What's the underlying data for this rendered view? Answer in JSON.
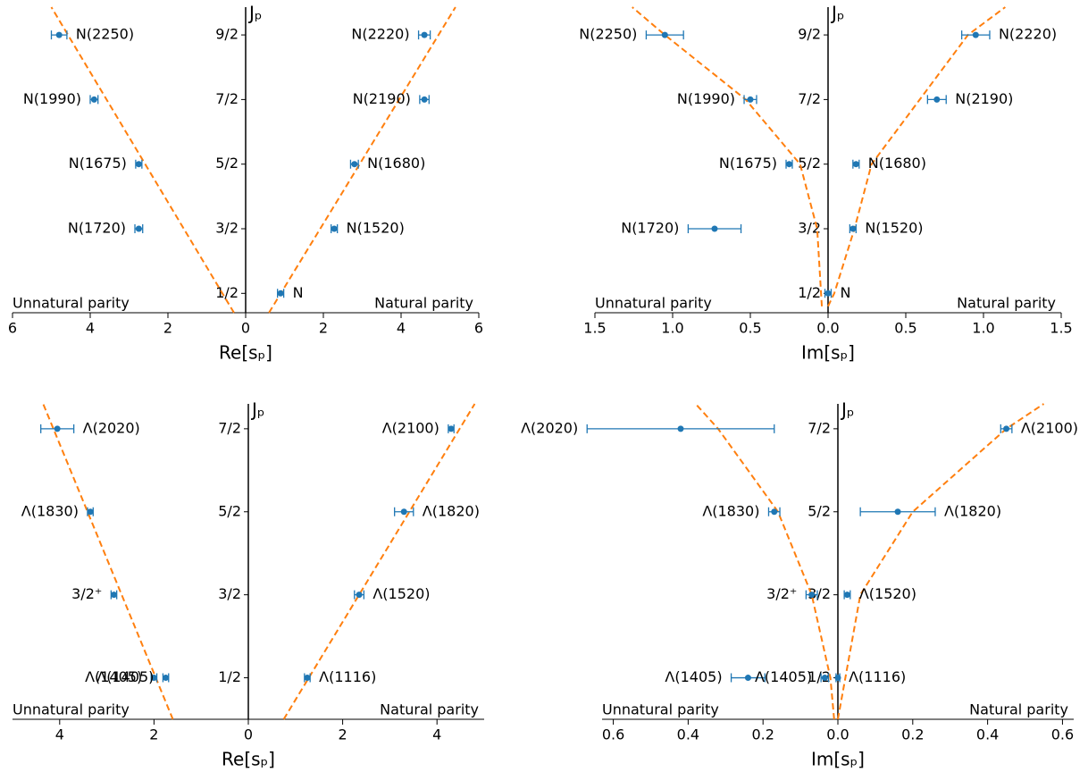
{
  "chart_data": [
    {
      "type": "scatter",
      "xlabel": "Re[sₚ]",
      "ylabel": "Jₚ",
      "left_note": "Unnatural parity",
      "right_note": "Natural parity",
      "color": "#1f77b4",
      "labels": [
        "N",
        "N(1520)",
        "N(1680)",
        "N(2190)",
        "N(2220)",
        "N(1720)",
        "N(1675)",
        "N(1990)",
        "N(2250)"
      ],
      "label_colors": [
        "#000000",
        "#000000",
        "#000000",
        "#000000",
        "#000000",
        "#000000",
        "#000000",
        "#000000",
        "#000000"
      ],
      "x": [
        0.9,
        2.28,
        2.8,
        4.6,
        4.6,
        -2.75,
        -2.75,
        -3.9,
        -4.8
      ],
      "y": [
        0.5,
        1.5,
        2.5,
        3.5,
        4.5,
        1.5,
        2.5,
        3.5,
        4.5
      ],
      "xerr": [
        0.08,
        0.08,
        0.1,
        0.12,
        0.15,
        0.1,
        0.08,
        0.1,
        0.2
      ],
      "curves": [
        {
          "color": "#ff7f0e",
          "x": [
            0.6,
            5.4
          ],
          "y": [
            0.2,
            4.93
          ]
        },
        {
          "color": "#ff7f0e",
          "x": [
            -0.3,
            -5.0
          ],
          "y": [
            0.2,
            4.93
          ]
        }
      ],
      "xlim": [
        -6,
        6
      ],
      "ylim": [
        0.2,
        4.93
      ],
      "xticks": [
        {
          "value": -6,
          "label": "6"
        },
        {
          "value": -4,
          "label": "4"
        },
        {
          "value": -2,
          "label": "2"
        },
        0,
        2,
        4,
        6
      ],
      "yticks": [
        {
          "value": 0.5,
          "label": "1/2"
        },
        {
          "value": 1.5,
          "label": "3/2"
        },
        {
          "value": 2.5,
          "label": "5/2"
        },
        {
          "value": 3.5,
          "label": "7/2"
        },
        {
          "value": 4.5,
          "label": "9/2"
        }
      ]
    },
    {
      "type": "scatter",
      "xlabel": "Im[sₚ]",
      "ylabel": "Jₚ",
      "left_note": "Unnatural parity",
      "right_note": "Natural parity",
      "color": "#1f77b4",
      "labels": [
        "N",
        "N(1520)",
        "N(1680)",
        "N(2190)",
        "N(2220)",
        "N(1720)",
        "N(1675)",
        "N(1990)",
        "N(2250)"
      ],
      "label_colors": [
        "#000000",
        "#000000",
        "#000000",
        "#000000",
        "#000000",
        "#000000",
        "#000000",
        "#000000",
        "#000000"
      ],
      "x": [
        0.0,
        0.16,
        0.18,
        0.7,
        0.95,
        -0.73,
        -0.25,
        -0.5,
        -1.05
      ],
      "y": [
        0.5,
        1.5,
        2.5,
        3.5,
        4.5,
        1.5,
        2.5,
        3.5,
        4.5
      ],
      "xerr": [
        0.02,
        0.02,
        0.02,
        0.06,
        0.09,
        0.17,
        0.02,
        0.04,
        0.12
      ],
      "curves": [
        {
          "color": "#ff7f0e",
          "x": [
            0.0,
            0.04,
            0.17,
            0.28,
            0.59,
            0.9,
            1.14
          ],
          "y": [
            0.3,
            0.5,
            1.5,
            2.5,
            3.5,
            4.5,
            4.93
          ]
        },
        {
          "color": "#ff7f0e",
          "x": [
            -0.04,
            -0.07,
            -0.18,
            -0.53,
            -1.05,
            -1.26
          ],
          "y": [
            0.3,
            1.5,
            2.5,
            3.5,
            4.5,
            4.93
          ]
        }
      ],
      "xlim": [
        -1.5,
        1.5
      ],
      "ylim": [
        0.2,
        4.93
      ],
      "xticks": [
        {
          "value": -1.5,
          "label": "1.5"
        },
        {
          "value": -1.0,
          "label": "1.0"
        },
        {
          "value": -0.5,
          "label": "0.5"
        },
        {
          "value": 0,
          "label": "0.0"
        },
        {
          "value": 0.5,
          "label": "0.5"
        },
        {
          "value": 1.0,
          "label": "1.0"
        },
        {
          "value": 1.5,
          "label": "1.5"
        }
      ],
      "yticks": [
        {
          "value": 0.5,
          "label": "1/2"
        },
        {
          "value": 1.5,
          "label": "3/2"
        },
        {
          "value": 2.5,
          "label": "5/2"
        },
        {
          "value": 3.5,
          "label": "7/2"
        },
        {
          "value": 4.5,
          "label": "9/2"
        }
      ]
    },
    {
      "type": "scatter",
      "xlabel": "Re[sₚ]",
      "ylabel": "Jₚ",
      "left_note": "Unnatural parity",
      "right_note": "Natural parity",
      "color": "#1f77b4",
      "labels": [
        "Λ(1116)",
        "Λ(1520)",
        "Λ(1820)",
        "Λ(2100)",
        "Λ(1405)",
        "Λ(1405)",
        "3/2⁺",
        "Λ(1830)",
        "Λ(2020)"
      ],
      "label_colors": [
        "#000000",
        "#000000",
        "#000000",
        "#000000",
        "#d62728",
        "#1f77b4",
        "#000000",
        "#000000",
        "#000000"
      ],
      "x": [
        1.25,
        2.35,
        3.3,
        4.3,
        -2.0,
        -1.75,
        -2.85,
        -3.35,
        -4.05
      ],
      "y": [
        0.5,
        1.5,
        2.5,
        3.5,
        0.5,
        0.5,
        1.5,
        2.5,
        3.5
      ],
      "xerr": [
        0.06,
        0.1,
        0.2,
        0.06,
        0.06,
        0.06,
        0.06,
        0.06,
        0.35
      ],
      "curves": [
        {
          "color": "#ff7f0e",
          "x": [
            0.75,
            4.8
          ],
          "y": [
            0.0,
            3.8
          ]
        },
        {
          "color": "#ff7f0e",
          "x": [
            -1.6,
            -4.35
          ],
          "y": [
            0.0,
            3.8
          ]
        }
      ],
      "xlim": [
        -5,
        5
      ],
      "ylim": [
        0.0,
        3.8
      ],
      "xticks": [
        {
          "value": -4,
          "label": "4"
        },
        {
          "value": -2,
          "label": "2"
        },
        0,
        2,
        4
      ],
      "yticks": [
        {
          "value": 0.5,
          "label": "1/2"
        },
        {
          "value": 1.5,
          "label": "3/2"
        },
        {
          "value": 2.5,
          "label": "5/2"
        },
        {
          "value": 3.5,
          "label": "7/2"
        }
      ]
    },
    {
      "type": "scatter",
      "xlabel": "Im[sₚ]",
      "ylabel": "Jₚ",
      "left_note": "Unnatural parity",
      "right_note": "Natural parity",
      "color": "#1f77b4",
      "labels": [
        "Λ(1116)",
        "Λ(1520)",
        "Λ(1820)",
        "Λ(2100)",
        "Λ(1405)",
        "Λ(1405)",
        "3/2⁺",
        "Λ(1830)",
        "Λ(2020)"
      ],
      "label_colors": [
        "#000000",
        "#000000",
        "#000000",
        "#000000",
        "#d62728",
        "#1f77b4",
        "#000000",
        "#000000",
        "#000000"
      ],
      "x": [
        0.0,
        0.025,
        0.16,
        0.45,
        -0.24,
        -0.035,
        -0.07,
        -0.17,
        -0.42
      ],
      "y": [
        0.5,
        1.5,
        2.5,
        3.5,
        0.5,
        0.5,
        1.5,
        2.5,
        3.5
      ],
      "xerr": [
        0.005,
        0.008,
        0.1,
        0.015,
        0.045,
        0.01,
        0.015,
        0.015,
        0.25
      ],
      "curves": [
        {
          "color": "#ff7f0e",
          "x": [
            0.0,
            0.02,
            0.06,
            0.2,
            0.45,
            0.55
          ],
          "y": [
            0.0,
            0.5,
            1.5,
            2.5,
            3.5,
            3.8
          ]
        },
        {
          "color": "#ff7f0e",
          "x": [
            -0.01,
            -0.02,
            -0.07,
            -0.16,
            -0.32,
            -0.38
          ],
          "y": [
            0.0,
            0.5,
            1.5,
            2.5,
            3.5,
            3.8
          ]
        }
      ],
      "xlim": [
        -0.63,
        0.63
      ],
      "ylim": [
        0.0,
        3.8
      ],
      "xticks": [
        {
          "value": -0.6,
          "label": "0.6"
        },
        {
          "value": -0.4,
          "label": "0.4"
        },
        {
          "value": -0.2,
          "label": "0.2"
        },
        {
          "value": 0,
          "label": "0.0"
        },
        {
          "value": 0.2,
          "label": "0.2"
        },
        {
          "value": 0.4,
          "label": "0.4"
        },
        {
          "value": 0.6,
          "label": "0.6"
        }
      ],
      "yticks": [
        {
          "value": 0.5,
          "label": "1/2"
        },
        {
          "value": 1.5,
          "label": "3/2"
        },
        {
          "value": 2.5,
          "label": "5/2"
        },
        {
          "value": 3.5,
          "label": "7/2"
        }
      ]
    }
  ]
}
